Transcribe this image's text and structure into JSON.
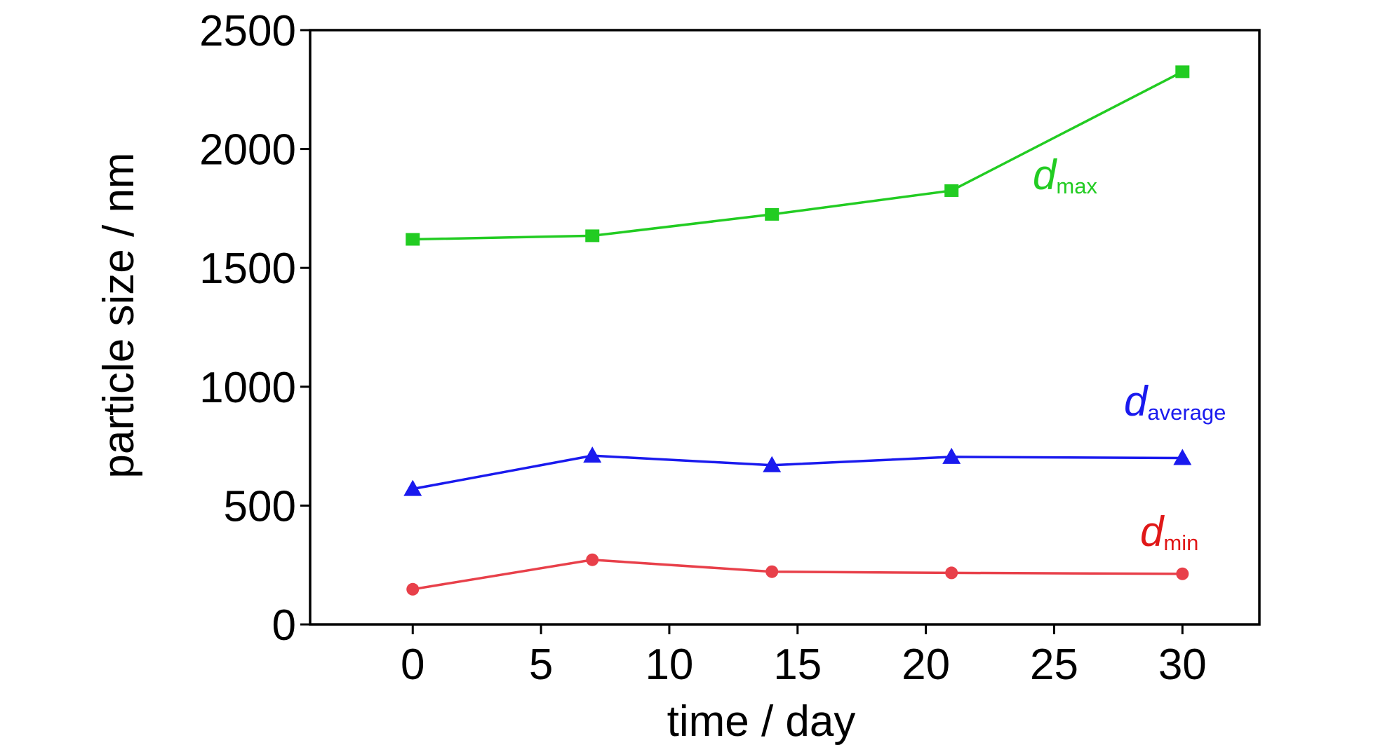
{
  "chart_data": {
    "type": "line",
    "xlabel": "time / day",
    "ylabel": "particle size / nm",
    "xlim": [
      -4,
      33
    ],
    "ylim": [
      0,
      2500
    ],
    "xticks": [
      "0",
      "5",
      "10",
      "15",
      "20",
      "25",
      "30"
    ],
    "yticks": [
      "0",
      "500",
      "1000",
      "1500",
      "2000",
      "2500"
    ],
    "grid": false,
    "series": [
      {
        "name": "dmax",
        "label_main": "d",
        "label_sub": "max",
        "color": "#22cc22",
        "marker": "square",
        "x": [
          0,
          7,
          14,
          21,
          30
        ],
        "y": [
          1620,
          1635,
          1725,
          1825,
          2325
        ]
      },
      {
        "name": "daverage",
        "label_main": "d",
        "label_sub": "average",
        "color": "#1a1aee",
        "marker": "triangle",
        "x": [
          0,
          7,
          14,
          21,
          30
        ],
        "y": [
          570,
          710,
          670,
          705,
          700
        ]
      },
      {
        "name": "dmin",
        "label_main": "d",
        "label_sub": "min",
        "color": "#e8404a",
        "marker": "circle",
        "x": [
          0,
          7,
          14,
          21,
          30
        ],
        "y": [
          148,
          272,
          222,
          217,
          213
        ]
      }
    ]
  }
}
